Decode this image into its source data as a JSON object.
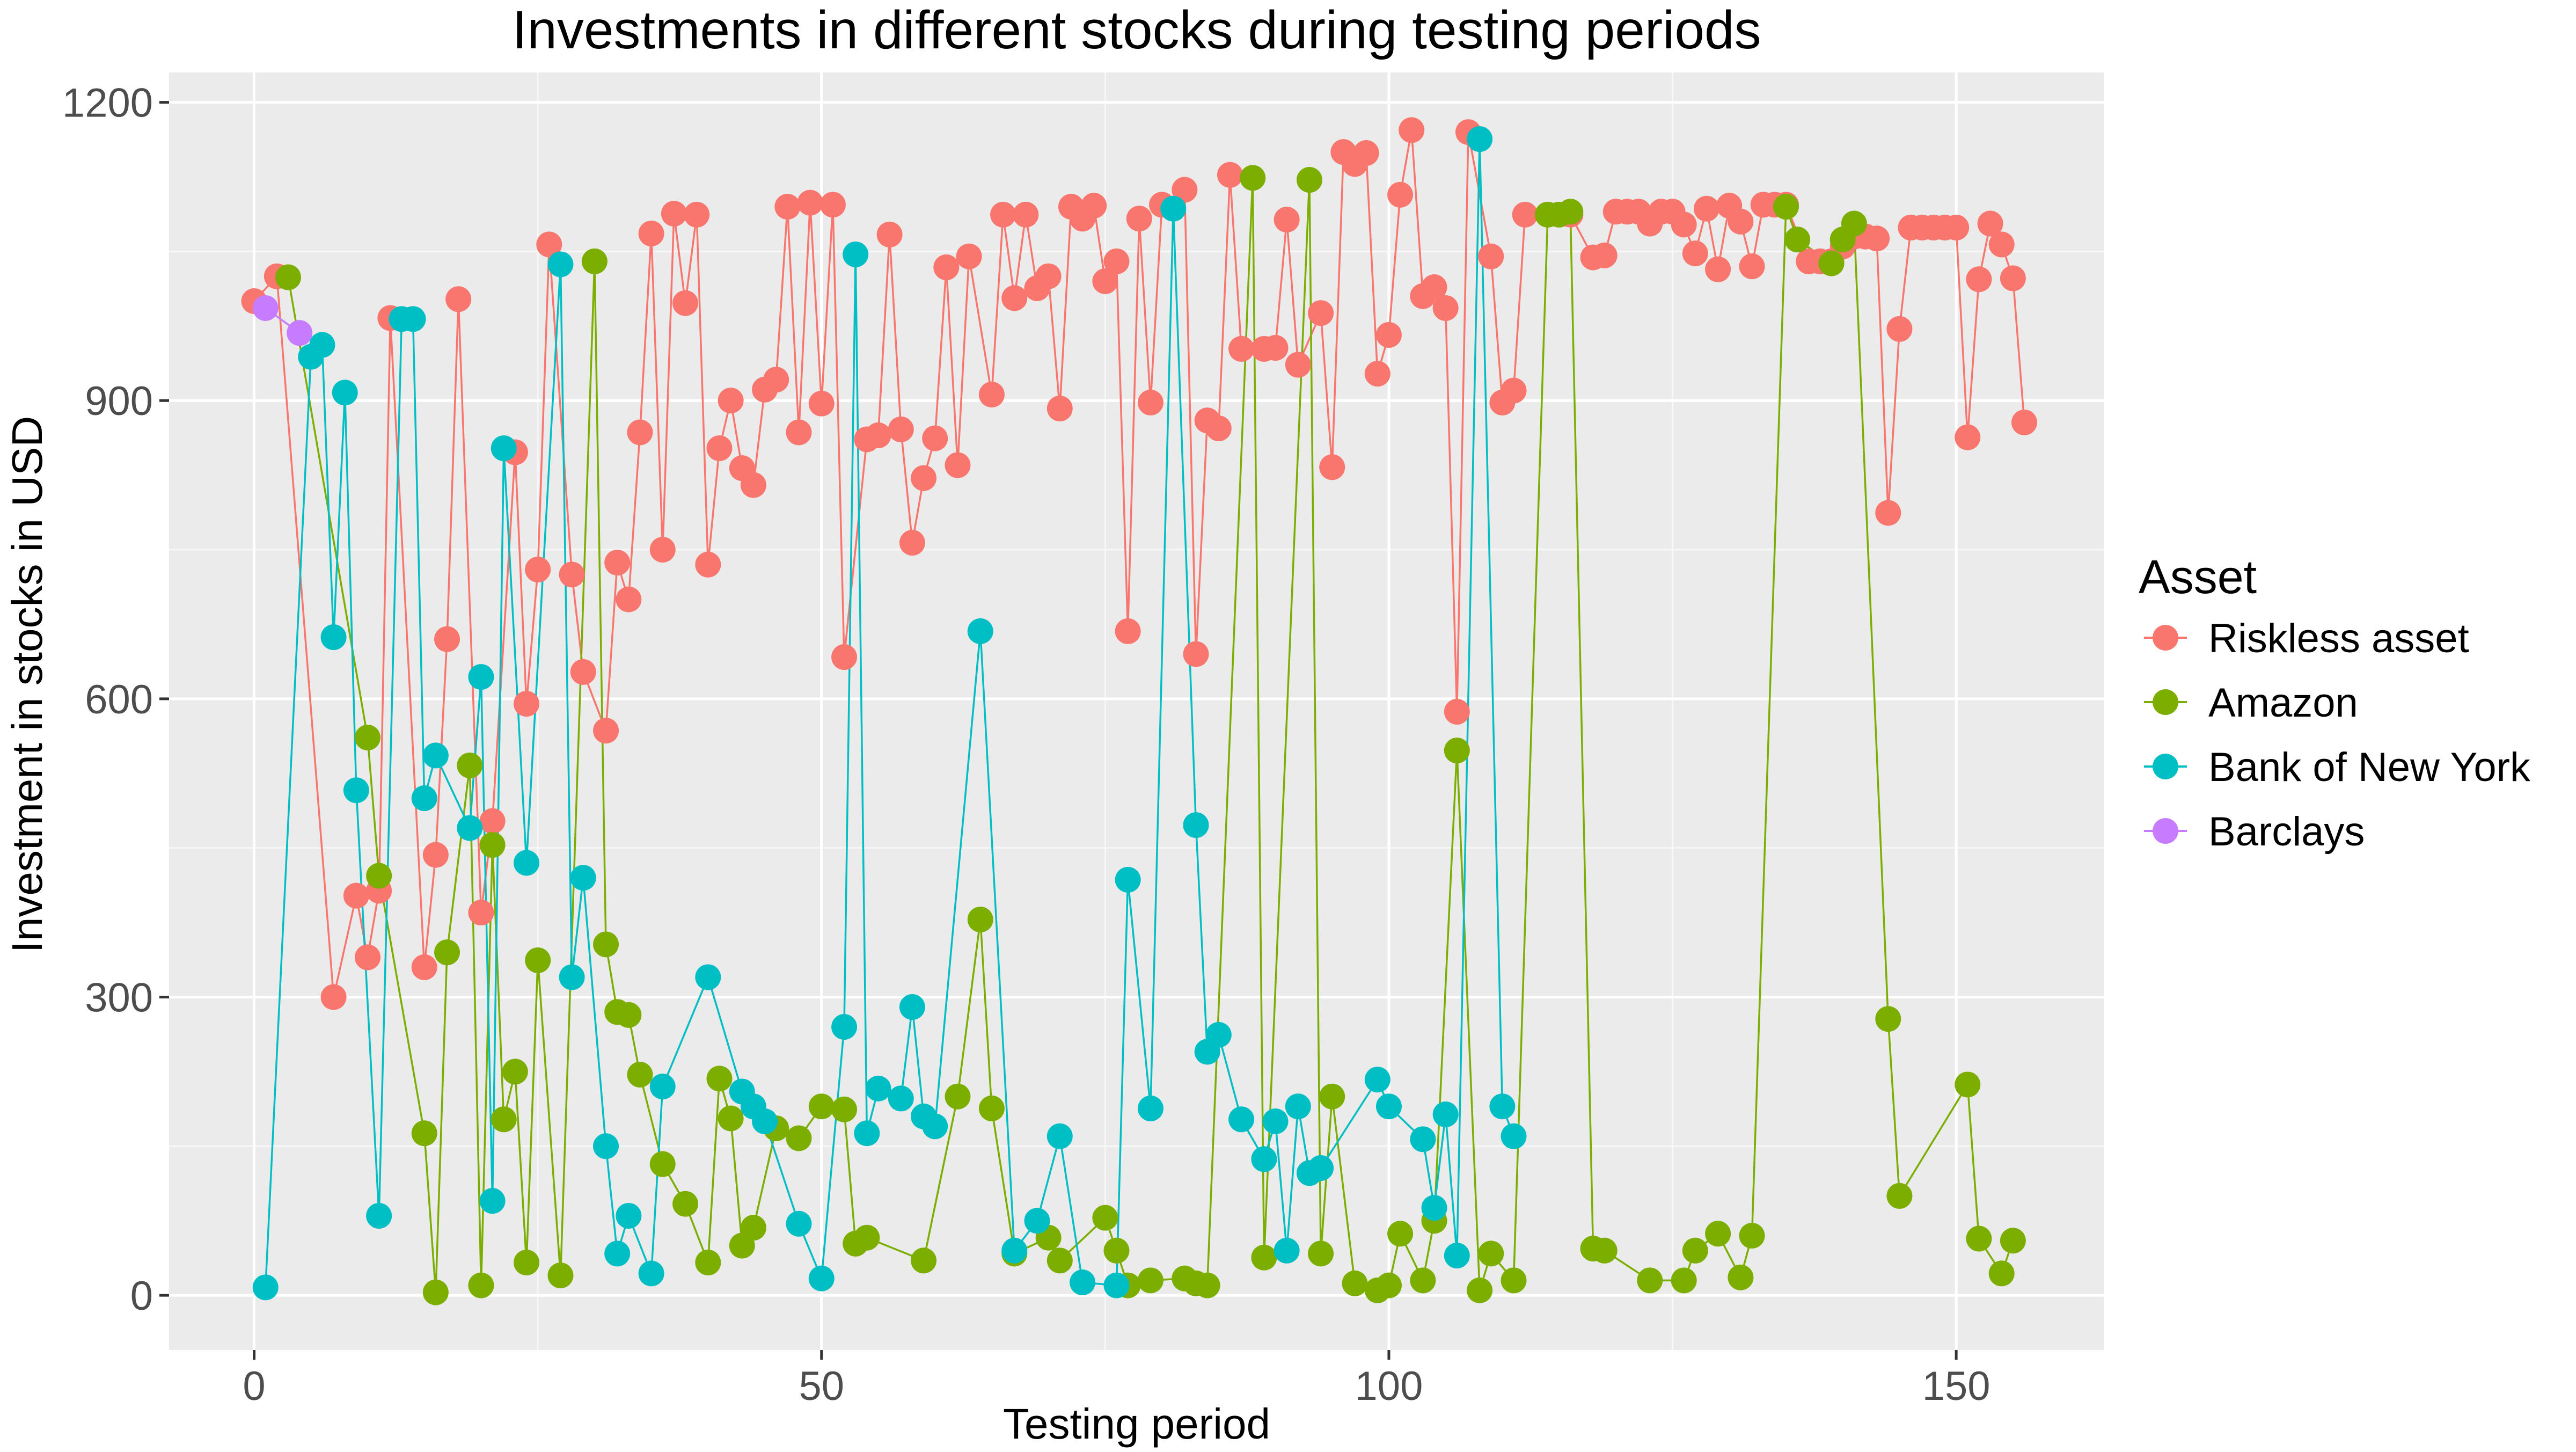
{
  "chart_data": {
    "type": "line",
    "title": "Investments in different stocks during testing periods",
    "xlabel": "Testing period",
    "ylabel": "Investment in stocks in USD",
    "xlim": [
      -7.5,
      163
    ],
    "ylim": [
      -55,
      1230
    ],
    "x_ticks": [
      0,
      50,
      100,
      150
    ],
    "y_ticks": [
      0,
      300,
      600,
      900,
      1200
    ],
    "grid": true,
    "legend": {
      "title": "Asset",
      "placement": "right"
    },
    "series": [
      {
        "name": "Riskless asset",
        "color": "#F8766D",
        "points": [
          [
            0,
            1000
          ],
          [
            2,
            1025
          ],
          [
            7,
            300
          ],
          [
            9,
            402
          ],
          [
            10,
            340
          ],
          [
            11,
            407
          ],
          [
            12,
            983
          ],
          [
            15,
            330
          ],
          [
            16,
            443
          ],
          [
            17,
            660
          ],
          [
            18,
            1002
          ],
          [
            20,
            385
          ],
          [
            21,
            477
          ],
          [
            23,
            848
          ],
          [
            24,
            595
          ],
          [
            25,
            730
          ],
          [
            26,
            1057
          ],
          [
            28,
            725
          ],
          [
            29,
            627
          ],
          [
            31,
            568
          ],
          [
            32,
            737
          ],
          [
            33,
            700
          ],
          [
            34,
            868
          ],
          [
            35,
            1068
          ],
          [
            36,
            750
          ],
          [
            37,
            1088
          ],
          [
            38,
            998
          ],
          [
            39,
            1087
          ],
          [
            40,
            735
          ],
          [
            41,
            852
          ],
          [
            42,
            900
          ],
          [
            43,
            832
          ],
          [
            44,
            815
          ],
          [
            45,
            911
          ],
          [
            46,
            921
          ],
          [
            47,
            1095
          ],
          [
            48,
            868
          ],
          [
            49,
            1099
          ],
          [
            50,
            897
          ],
          [
            51,
            1097
          ],
          [
            52,
            642
          ],
          [
            54,
            861
          ],
          [
            55,
            865
          ],
          [
            56,
            1067
          ],
          [
            57,
            871
          ],
          [
            58,
            757
          ],
          [
            59,
            822
          ],
          [
            60,
            862
          ],
          [
            61,
            1034
          ],
          [
            62,
            835
          ],
          [
            63,
            1045
          ],
          [
            65,
            906
          ],
          [
            66,
            1087
          ],
          [
            67,
            1003
          ],
          [
            68,
            1087
          ],
          [
            69,
            1013
          ],
          [
            70,
            1025
          ],
          [
            71,
            892
          ],
          [
            72,
            1095
          ],
          [
            73,
            1083
          ],
          [
            74,
            1096
          ],
          [
            75,
            1020
          ],
          [
            76,
            1040
          ],
          [
            77,
            668
          ],
          [
            78,
            1083
          ],
          [
            79,
            898
          ],
          [
            80,
            1097
          ],
          [
            82,
            1112
          ],
          [
            83,
            645
          ],
          [
            84,
            880
          ],
          [
            85,
            872
          ],
          [
            86,
            1127
          ],
          [
            87,
            952
          ],
          [
            89,
            952
          ],
          [
            90,
            953
          ],
          [
            91,
            1082
          ],
          [
            92,
            936
          ],
          [
            94,
            988
          ],
          [
            95,
            833
          ],
          [
            96,
            1150
          ],
          [
            97,
            1138
          ],
          [
            98,
            1149
          ],
          [
            99,
            927
          ],
          [
            100,
            966
          ],
          [
            101,
            1107
          ],
          [
            102,
            1172
          ],
          [
            103,
            1005
          ],
          [
            104,
            1014
          ],
          [
            105,
            993
          ],
          [
            106,
            587
          ],
          [
            107,
            1170
          ],
          [
            109,
            1045
          ],
          [
            110,
            898
          ],
          [
            111,
            910
          ],
          [
            112,
            1087
          ],
          [
            114,
            1087
          ],
          [
            116,
            1087
          ],
          [
            118,
            1044
          ],
          [
            119,
            1046
          ],
          [
            120,
            1090
          ],
          [
            121,
            1090
          ],
          [
            122,
            1090
          ],
          [
            123,
            1078
          ],
          [
            124,
            1090
          ],
          [
            125,
            1090
          ],
          [
            126,
            1077
          ],
          [
            127,
            1048
          ],
          [
            128,
            1093
          ],
          [
            129,
            1032
          ],
          [
            130,
            1096
          ],
          [
            131,
            1080
          ],
          [
            132,
            1035
          ],
          [
            133,
            1097
          ],
          [
            134,
            1097
          ],
          [
            135,
            1097
          ],
          [
            137,
            1040
          ],
          [
            138,
            1040
          ],
          [
            139,
            1040
          ],
          [
            140,
            1055
          ],
          [
            141,
            1065
          ],
          [
            142,
            1065
          ],
          [
            143,
            1063
          ],
          [
            144,
            787
          ],
          [
            145,
            972
          ],
          [
            146,
            1074
          ],
          [
            147,
            1074
          ],
          [
            148,
            1074
          ],
          [
            149,
            1074
          ],
          [
            150,
            1074
          ],
          [
            151,
            863
          ],
          [
            152,
            1022
          ],
          [
            153,
            1078
          ],
          [
            154,
            1057
          ],
          [
            155,
            1023
          ],
          [
            156,
            878
          ]
        ]
      },
      {
        "name": "Amazon",
        "color": "#7CAE00",
        "points": [
          [
            3,
            1024
          ],
          [
            10,
            561
          ],
          [
            11,
            422
          ],
          [
            15,
            163
          ],
          [
            16,
            3
          ],
          [
            17,
            345
          ],
          [
            19,
            533
          ],
          [
            20,
            10
          ],
          [
            21,
            453
          ],
          [
            22,
            177
          ],
          [
            23,
            225
          ],
          [
            24,
            33
          ],
          [
            25,
            337
          ],
          [
            27,
            20
          ],
          [
            30,
            1040
          ],
          [
            31,
            353
          ],
          [
            32,
            285
          ],
          [
            33,
            282
          ],
          [
            34,
            222
          ],
          [
            36,
            132
          ],
          [
            38,
            92
          ],
          [
            40,
            33
          ],
          [
            41,
            218
          ],
          [
            42,
            178
          ],
          [
            43,
            50
          ],
          [
            44,
            68
          ],
          [
            46,
            168
          ],
          [
            48,
            158
          ],
          [
            50,
            190
          ],
          [
            52,
            187
          ],
          [
            53,
            52
          ],
          [
            54,
            58
          ],
          [
            59,
            35
          ],
          [
            62,
            200
          ],
          [
            64,
            378
          ],
          [
            65,
            188
          ],
          [
            67,
            42
          ],
          [
            70,
            58
          ],
          [
            71,
            35
          ],
          [
            75,
            78
          ],
          [
            76,
            45
          ],
          [
            77,
            10
          ],
          [
            79,
            15
          ],
          [
            82,
            17
          ],
          [
            83,
            12
          ],
          [
            84,
            10
          ],
          [
            88,
            1124
          ],
          [
            89,
            38
          ],
          [
            93,
            1122
          ],
          [
            94,
            42
          ],
          [
            95,
            200
          ],
          [
            97,
            12
          ],
          [
            99,
            5
          ],
          [
            100,
            10
          ],
          [
            101,
            62
          ],
          [
            103,
            15
          ],
          [
            104,
            75
          ],
          [
            106,
            548
          ],
          [
            108,
            5
          ],
          [
            109,
            42
          ],
          [
            111,
            15
          ],
          [
            114,
            1087
          ],
          [
            115,
            1087
          ],
          [
            116,
            1090
          ],
          [
            118,
            47
          ],
          [
            119,
            45
          ],
          [
            123,
            15
          ],
          [
            126,
            15
          ],
          [
            127,
            45
          ],
          [
            129,
            62
          ],
          [
            131,
            18
          ],
          [
            132,
            60
          ],
          [
            135,
            1095
          ],
          [
            136,
            1062
          ],
          [
            139,
            1038
          ],
          [
            140,
            1062
          ],
          [
            141,
            1078
          ],
          [
            144,
            278
          ],
          [
            145,
            100
          ],
          [
            151,
            212
          ],
          [
            152,
            57
          ],
          [
            154,
            22
          ],
          [
            155,
            55
          ]
        ]
      },
      {
        "name": "Bank of New York",
        "color": "#00BFC4",
        "points": [
          [
            1,
            8
          ],
          [
            5,
            944
          ],
          [
            6,
            956
          ],
          [
            7,
            662
          ],
          [
            8,
            908
          ],
          [
            9,
            508
          ],
          [
            11,
            80
          ],
          [
            13,
            982
          ],
          [
            14,
            982
          ],
          [
            15,
            500
          ],
          [
            16,
            543
          ],
          [
            19,
            470
          ],
          [
            20,
            622
          ],
          [
            21,
            95
          ],
          [
            22,
            852
          ],
          [
            24,
            435
          ],
          [
            27,
            1037
          ],
          [
            28,
            320
          ],
          [
            29,
            420
          ],
          [
            31,
            150
          ],
          [
            32,
            42
          ],
          [
            33,
            80
          ],
          [
            35,
            22
          ],
          [
            36,
            210
          ],
          [
            40,
            320
          ],
          [
            43,
            205
          ],
          [
            44,
            190
          ],
          [
            45,
            175
          ],
          [
            48,
            72
          ],
          [
            50,
            17
          ],
          [
            52,
            270
          ],
          [
            53,
            1047
          ],
          [
            54,
            163
          ],
          [
            55,
            208
          ],
          [
            57,
            198
          ],
          [
            58,
            290
          ],
          [
            59,
            180
          ],
          [
            60,
            170
          ],
          [
            64,
            668
          ],
          [
            67,
            45
          ],
          [
            69,
            75
          ],
          [
            71,
            160
          ],
          [
            73,
            13
          ],
          [
            76,
            10
          ],
          [
            77,
            418
          ],
          [
            79,
            188
          ],
          [
            81,
            1093
          ],
          [
            83,
            473
          ],
          [
            84,
            245
          ],
          [
            85,
            262
          ],
          [
            87,
            177
          ],
          [
            89,
            137
          ],
          [
            90,
            175
          ],
          [
            91,
            45
          ],
          [
            92,
            190
          ],
          [
            93,
            123
          ],
          [
            94,
            128
          ],
          [
            99,
            217
          ],
          [
            100,
            190
          ],
          [
            103,
            157
          ],
          [
            104,
            88
          ],
          [
            105,
            182
          ],
          [
            106,
            40
          ],
          [
            108,
            1163
          ],
          [
            110,
            190
          ],
          [
            111,
            160
          ]
        ]
      },
      {
        "name": "Barclays",
        "color": "#C77CFF",
        "points": [
          [
            1,
            993
          ],
          [
            4,
            968
          ]
        ]
      }
    ]
  }
}
